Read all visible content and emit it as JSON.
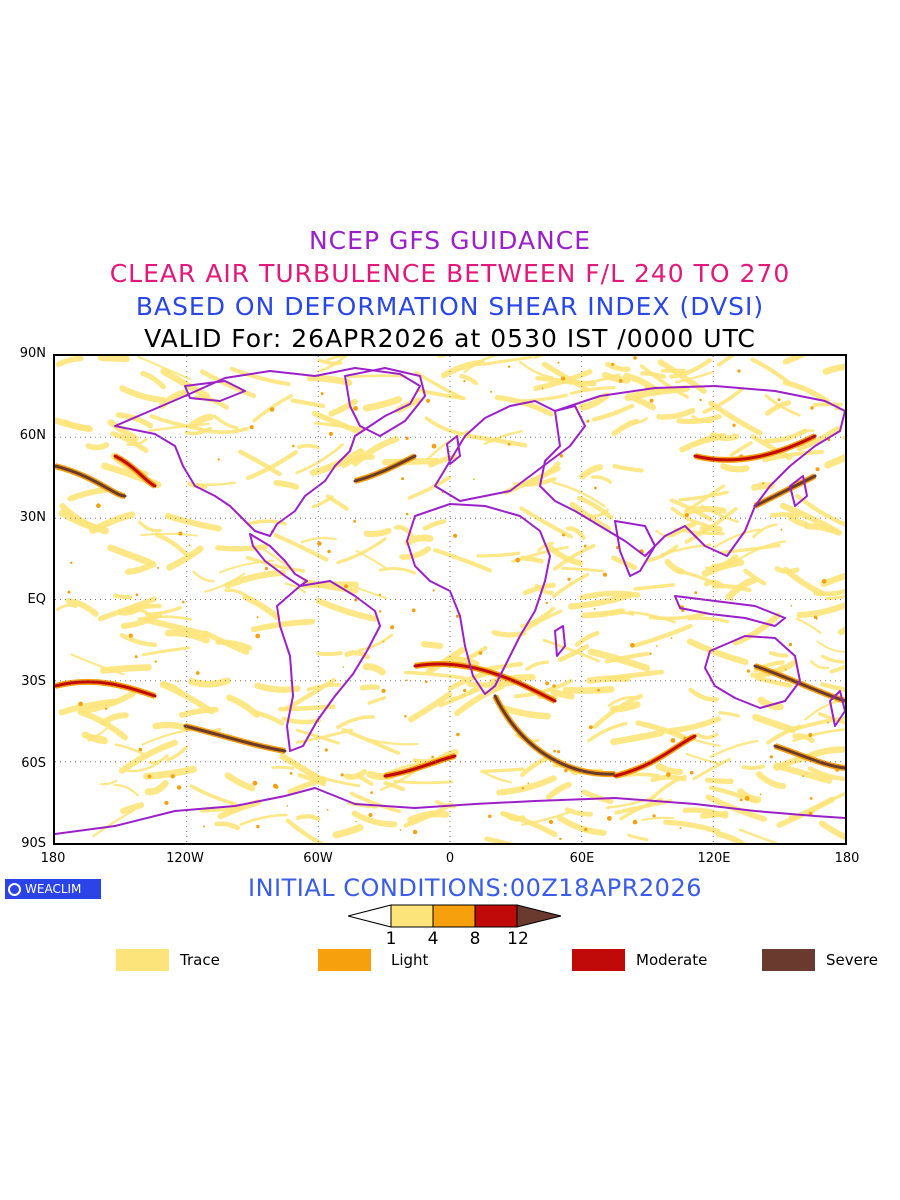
{
  "titles": {
    "line1": "NCEP GFS GUIDANCE",
    "line2": "CLEAR AIR TURBULENCE BETWEEN F/L 240 TO 270",
    "line3": "BASED ON DEFORMATION SHEAR INDEX (DVSI)",
    "line4": "VALID For: 26APR2026 at 0530 IST /0000 UTC"
  },
  "axes": {
    "lat_labels": [
      "90N",
      "60N",
      "30N",
      "EQ",
      "30S",
      "60S",
      "90S"
    ],
    "lon_labels": [
      "180",
      "120W",
      "60W",
      "0",
      "60E",
      "120E",
      "180"
    ]
  },
  "brand": {
    "label": "WEACLIM",
    "icon": "weaclim-logo-icon"
  },
  "init_conditions": "INITIAL CONDITIONS:00Z18APR2026",
  "colorbar": {
    "ticks": [
      "1",
      "4",
      "8",
      "12"
    ],
    "colors": [
      "#ffffff",
      "#fde47a",
      "#f5a00c",
      "#c00a0a",
      "#6b3a2e"
    ]
  },
  "legend": [
    {
      "label": "Trace",
      "color": "#fde47a"
    },
    {
      "label": "Light",
      "color": "#f5a00c"
    },
    {
      "label": "Moderate",
      "color": "#c00a0a"
    },
    {
      "label": "Severe",
      "color": "#6b3a2e"
    }
  ],
  "map_style": {
    "coastline_color": "#9b20c9",
    "grid": "dotted",
    "trace_color": "#fde47a",
    "light_color": "#f5a00c",
    "moderate_color": "#c00a0a",
    "severe_color": "#6b3a2e"
  }
}
